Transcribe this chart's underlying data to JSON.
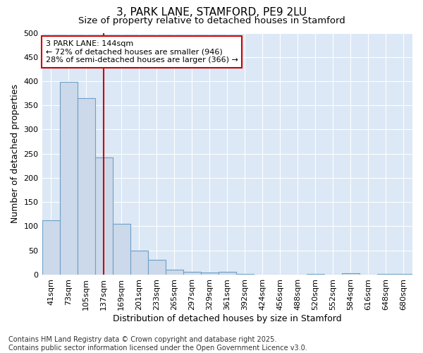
{
  "title1": "3, PARK LANE, STAMFORD, PE9 2LU",
  "title2": "Size of property relative to detached houses in Stamford",
  "xlabel": "Distribution of detached houses by size in Stamford",
  "ylabel": "Number of detached properties",
  "categories": [
    "41sqm",
    "73sqm",
    "105sqm",
    "137sqm",
    "169sqm",
    "201sqm",
    "233sqm",
    "265sqm",
    "297sqm",
    "329sqm",
    "361sqm",
    "392sqm",
    "424sqm",
    "456sqm",
    "488sqm",
    "520sqm",
    "552sqm",
    "584sqm",
    "616sqm",
    "648sqm",
    "680sqm"
  ],
  "values": [
    112,
    398,
    365,
    242,
    105,
    50,
    31,
    10,
    6,
    5,
    6,
    1,
    0,
    0,
    0,
    2,
    0,
    3,
    0,
    1,
    2
  ],
  "bar_color": "#ccd9ea",
  "bar_edge_color": "#6da0c8",
  "vline_color": "#cc0000",
  "annotation_line1": "3 PARK LANE: 144sqm",
  "annotation_line2": "← 72% of detached houses are smaller (946)",
  "annotation_line3": "28% of semi-detached houses are larger (366) →",
  "annotation_box_facecolor": "#ffffff",
  "annotation_box_edgecolor": "#cc0000",
  "ylim": [
    0,
    500
  ],
  "yticks": [
    0,
    50,
    100,
    150,
    200,
    250,
    300,
    350,
    400,
    450,
    500
  ],
  "footnote": "Contains HM Land Registry data © Crown copyright and database right 2025.\nContains public sector information licensed under the Open Government Licence v3.0.",
  "fig_background": "#ffffff",
  "plot_background": "#dce8f5",
  "grid_color": "#ffffff",
  "title1_fontsize": 11,
  "title2_fontsize": 9.5,
  "axis_label_fontsize": 9,
  "tick_fontsize": 8,
  "footnote_fontsize": 7,
  "annotation_fontsize": 8
}
